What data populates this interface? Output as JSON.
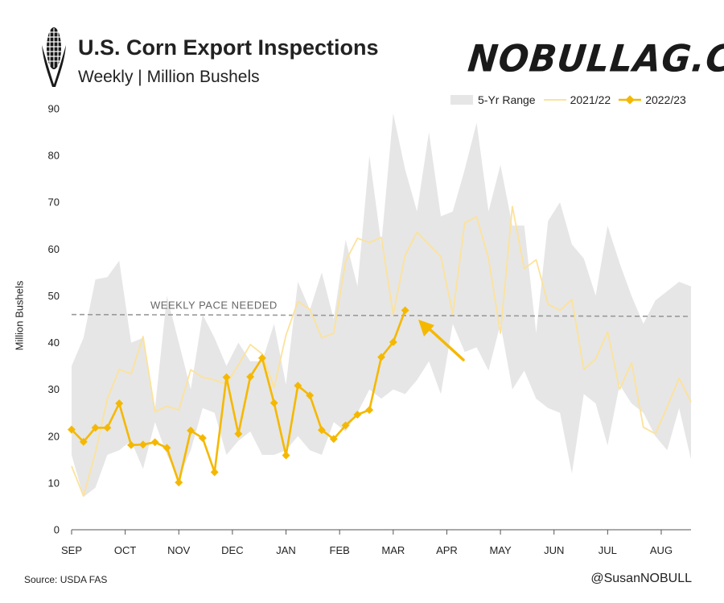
{
  "header": {
    "title": "U.S. Corn Export Inspections",
    "subtitle": "Weekly  |  Million Bushels",
    "brand": "NOBULLAG.COM"
  },
  "footer": {
    "source": "Source: USDA FAS",
    "handle": "@SusanNOBULL"
  },
  "chart_data": {
    "type": "line",
    "title": "U.S. Corn Export Inspections",
    "subtitle": "Weekly | Million Bushels",
    "ylabel": "Million Bushels",
    "xlabel": "",
    "ylim": [
      0,
      90
    ],
    "yticks": [
      0,
      10,
      20,
      30,
      40,
      50,
      60,
      70,
      80,
      90
    ],
    "weeks": 53,
    "months": [
      {
        "label": "SEP",
        "week": 1
      },
      {
        "label": "OCT",
        "week": 5.5
      },
      {
        "label": "NOV",
        "week": 10
      },
      {
        "label": "DEC",
        "week": 14.5
      },
      {
        "label": "JAN",
        "week": 19
      },
      {
        "label": "FEB",
        "week": 23.5
      },
      {
        "label": "MAR",
        "week": 28
      },
      {
        "label": "APR",
        "week": 32.5
      },
      {
        "label": "MAY",
        "week": 37
      },
      {
        "label": "JUN",
        "week": 41.5
      },
      {
        "label": "JUL",
        "week": 46
      },
      {
        "label": "AUG",
        "week": 50.5
      }
    ],
    "legend_position": "top-right",
    "grid": false,
    "reference_line": {
      "label": "WEEKLY PACE NEEDED",
      "y_start": 46.0,
      "y_end": 45.6
    },
    "series": [
      {
        "name": "5-Yr Range",
        "kind": "band",
        "color": "#e6e6e6",
        "high": [
          35,
          41,
          53.5,
          54,
          57.5,
          40,
          41,
          26,
          50,
          40,
          30,
          46,
          41,
          35,
          40,
          36,
          36,
          44,
          31,
          53,
          47,
          55,
          45,
          62,
          52,
          80,
          61,
          89,
          77,
          68,
          85,
          67,
          68,
          77,
          87,
          68,
          78,
          65,
          65,
          42,
          66,
          70,
          61,
          58,
          50,
          65,
          57,
          50,
          44,
          49,
          51,
          53,
          52
        ],
        "low": [
          16,
          7,
          9,
          16,
          17,
          19,
          13,
          23,
          16,
          11,
          17,
          26,
          25,
          16,
          19,
          21,
          16,
          16,
          17,
          20,
          17,
          16,
          23,
          21,
          25,
          30,
          28,
          30,
          29,
          32,
          36,
          29,
          44,
          38,
          39,
          34,
          44,
          30,
          34,
          28,
          26,
          25,
          12,
          29,
          27,
          18,
          31,
          27,
          25,
          20,
          17,
          26,
          15
        ]
      },
      {
        "name": "2021/22",
        "kind": "line",
        "color": "#fce29a",
        "values": [
          13.6,
          7.2,
          16.5,
          28.0,
          34.3,
          33.3,
          41.3,
          25.2,
          26.4,
          25.6,
          34.2,
          32.6,
          32.0,
          31.1,
          35.2,
          39.6,
          37.6,
          30.4,
          41.6,
          48.8,
          47.1,
          41.0,
          42.0,
          57.4,
          62.3,
          61.4,
          62.5,
          46.0,
          58.7,
          63.6,
          61.0,
          58.4,
          46.1,
          65.6,
          66.9,
          58.0,
          42.0,
          69.1,
          55.8,
          57.7,
          48.2,
          46.9,
          49.2,
          34.3,
          36.5,
          42.3,
          30.0,
          35.7,
          21.9,
          20.5,
          26.3,
          32.4,
          27.3
        ]
      },
      {
        "name": "2022/23",
        "kind": "line",
        "color": "#f5b800",
        "values": [
          21.4,
          18.8,
          21.8,
          21.8,
          27.0,
          18.1,
          18.2,
          18.7,
          17.5,
          10.1,
          21.2,
          19.6,
          12.3,
          32.6,
          20.5,
          32.7,
          36.7,
          27.1,
          15.9,
          30.8,
          28.7,
          21.3,
          19.4,
          22.3,
          24.6,
          25.6,
          36.9,
          40.1,
          46.9
        ]
      }
    ]
  }
}
